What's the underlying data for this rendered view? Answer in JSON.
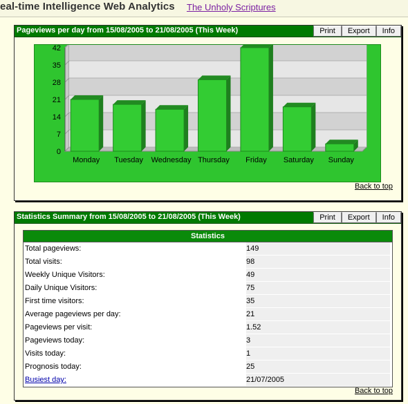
{
  "header": {
    "app_title": "eal-time Intelligence Web Analytics",
    "site_link": "The Unholy Scriptures"
  },
  "chart_panel": {
    "title": "Pageviews per day from 15/08/2005 to 21/08/2005 (This Week)",
    "tools": [
      "Print",
      "Export",
      "Info"
    ],
    "back_to_top": "Back to top"
  },
  "chart_data": {
    "type": "bar",
    "categories": [
      "Monday",
      "Tuesday",
      "Wednesday",
      "Thursday",
      "Friday",
      "Saturday",
      "Sunday"
    ],
    "values": [
      21,
      19,
      17,
      29,
      42,
      18,
      3
    ],
    "yticks": [
      "0",
      "7",
      "14",
      "21",
      "28",
      "35",
      "42"
    ],
    "ylim": [
      0,
      42
    ],
    "title": "",
    "xlabel": "",
    "ylabel": "",
    "grid": true,
    "colors": {
      "bar": "#33cc33",
      "bar_dark": "#1f7f1f",
      "plot_bg": "#e9e9e9",
      "outer_bg": "#2fc52f"
    }
  },
  "stats_panel": {
    "title": "Statistics Summary from 15/08/2005 to 21/08/2005 (This Week)",
    "tools": [
      "Print",
      "Export",
      "Info"
    ],
    "table_header": "Statistics",
    "rows": [
      {
        "label": "Total pageviews:",
        "value": "149"
      },
      {
        "label": "Total visits:",
        "value": "98"
      },
      {
        "label": "Weekly Unique Visitors:",
        "value": "49"
      },
      {
        "label": "Daily Unique Visitors:",
        "value": "75"
      },
      {
        "label": "First time visitors:",
        "value": "35"
      },
      {
        "label": "Average pageviews per day:",
        "value": "21"
      },
      {
        "label": "Pageviews per visit:",
        "value": "1.52"
      },
      {
        "label": "Pageviews today:",
        "value": "3"
      },
      {
        "label": "Visits today:",
        "value": "1"
      },
      {
        "label": "Prognosis today:",
        "value": "25"
      },
      {
        "label": "Busiest day:",
        "value": "21/07/2005"
      }
    ],
    "back_to_top": "Back to top"
  }
}
